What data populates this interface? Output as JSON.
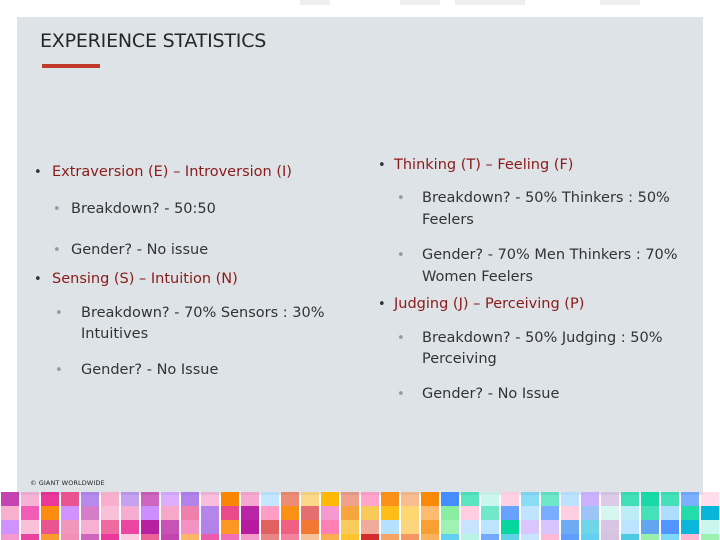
{
  "slide": {
    "title": "EXPERIENCE STATISTICS",
    "left": {
      "ei_header": "Extraversion (E) – Introversion (I)",
      "ei_breakdown": "Breakdown? - 50:50",
      "ei_gender": "Gender? - No issue",
      "sn_header": "Sensing (S) – Intuition (N)",
      "sn_breakdown_1": "Breakdown? - 70% Sensors : 30%",
      "sn_breakdown_2": "Intuitives",
      "sn_gender": "Gender? - No Issue"
    },
    "right": {
      "tf_header": "Thinking (T) – Feeling (F)",
      "tf_breakdown_1": "Breakdown? - 50% Thinkers : 50%",
      "tf_breakdown_2": "Feelers",
      "tf_gender_1": "Gender? - 70% Men Thinkers : 70%",
      "tf_gender_2": "Women Feelers",
      "jp_header": "Judging (J) – Perceiving (P)",
      "jp_breakdown_1": "Breakdown? - 50% Judging : 50%",
      "jp_breakdown_2": "Perceiving",
      "jp_gender": "Gender? - No Issue"
    },
    "footer": {
      "copyright": "© GIANT WORLDWIDE"
    }
  },
  "colors": {
    "panel": "#dde3e6",
    "accent_rule": "#c0392b",
    "header_text": "#8b1a1a",
    "body_text": "#333333"
  }
}
